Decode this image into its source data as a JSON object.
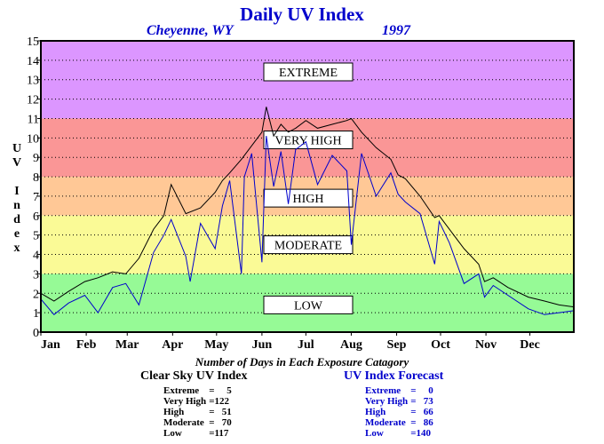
{
  "title": "Daily UV Index",
  "location": "Cheyenne, WY",
  "year": "1997",
  "colors": {
    "extreme": "#dc96ff",
    "very_high": "#fa9696",
    "high": "#ffc896",
    "moderate": "#fafa96",
    "low": "#96fa96",
    "clear_sky_line": "#000000",
    "forecast_line": "#0000cc",
    "title_color": "#0000cc"
  },
  "chart_data": {
    "type": "line",
    "title": "Daily UV Index",
    "ylabel": "UV Index",
    "xlabel": "",
    "ylim": [
      0,
      15
    ],
    "yticks": [
      "0",
      "1",
      "2",
      "3",
      "4",
      "5",
      "6",
      "7",
      "8",
      "9",
      "10",
      "11",
      "12",
      "13",
      "14",
      "15"
    ],
    "month_labels": [
      "Jan",
      "Feb",
      "Mar",
      "Apr",
      "May",
      "Jun",
      "Jul",
      "Aug",
      "Sep",
      "Oct",
      "Nov",
      "Dec"
    ],
    "grid": "dotted horizontal",
    "bands": [
      {
        "label": "EXTREME",
        "from": 11,
        "to": 15,
        "label_at": 13.4
      },
      {
        "label": "VERY HIGH",
        "from": 8,
        "to": 11,
        "label_at": 9.9
      },
      {
        "label": "HIGH",
        "from": 6,
        "to": 8,
        "label_at": 6.9
      },
      {
        "label": "MODERATE",
        "from": 3,
        "to": 6,
        "label_at": 4.5
      },
      {
        "label": "LOW",
        "from": 0,
        "to": 3,
        "label_at": 1.4
      }
    ],
    "series": [
      {
        "name": "Clear Sky UV Index",
        "x_day": [
          1,
          10,
          20,
          31,
          40,
          50,
          59,
          68,
          78,
          85,
          90,
          100,
          110,
          120,
          125,
          130,
          138,
          145,
          152,
          155,
          160,
          165,
          170,
          175,
          182,
          190,
          200,
          210,
          213,
          220,
          230,
          240,
          245,
          250,
          260,
          270,
          273,
          280,
          290,
          300,
          304,
          310,
          320,
          334,
          345,
          355,
          365
        ],
        "values": [
          2.0,
          1.6,
          2.1,
          2.6,
          2.8,
          3.1,
          3.0,
          3.8,
          5.3,
          6.0,
          7.6,
          6.1,
          6.4,
          7.2,
          7.8,
          8.2,
          8.9,
          9.6,
          10.3,
          11.6,
          10.1,
          10.7,
          10.3,
          10.5,
          10.9,
          10.5,
          10.7,
          10.9,
          11.0,
          10.3,
          9.5,
          8.9,
          8.1,
          7.9,
          7.0,
          5.9,
          6.0,
          5.3,
          4.3,
          3.5,
          2.6,
          2.8,
          2.3,
          1.8,
          1.6,
          1.4,
          1.3
        ]
      },
      {
        "name": "UV Index Forecast",
        "x_day": [
          1,
          10,
          20,
          31,
          40,
          50,
          59,
          68,
          78,
          85,
          90,
          100,
          103,
          110,
          120,
          125,
          130,
          138,
          140,
          145,
          152,
          155,
          160,
          165,
          170,
          175,
          182,
          190,
          200,
          210,
          213,
          220,
          230,
          240,
          245,
          250,
          260,
          270,
          273,
          280,
          290,
          300,
          304,
          310,
          320,
          334,
          345,
          355,
          365
        ],
        "values": [
          1.7,
          0.9,
          1.5,
          1.9,
          1.0,
          2.3,
          2.5,
          1.4,
          4.1,
          5.0,
          5.8,
          3.9,
          2.6,
          5.6,
          4.3,
          6.5,
          7.8,
          3.0,
          8.0,
          9.2,
          3.6,
          10.1,
          7.5,
          9.3,
          6.6,
          9.4,
          9.8,
          7.6,
          9.1,
          8.3,
          4.5,
          9.2,
          7.0,
          8.2,
          7.1,
          6.7,
          6.1,
          3.5,
          5.7,
          4.6,
          2.5,
          3.0,
          1.8,
          2.4,
          1.9,
          1.2,
          0.9,
          1.0,
          1.1
        ]
      }
    ]
  },
  "footer": {
    "title": "Number of Days in Each Exposure Catagory",
    "clear_sky": {
      "heading": "Clear Sky UV Index",
      "rows": [
        {
          "label": "Extreme",
          "value": "=     5"
        },
        {
          "label": "Very High",
          "value": "=122"
        },
        {
          "label": "High",
          "value": "=   51"
        },
        {
          "label": "Moderate",
          "value": "=   70"
        },
        {
          "label": "Low",
          "value": "=117"
        }
      ]
    },
    "forecast": {
      "heading": "UV Index Forecast",
      "rows": [
        {
          "label": "Extreme",
          "value": "=     0"
        },
        {
          "label": "Very High",
          "value": "=   73"
        },
        {
          "label": "High",
          "value": "=   66"
        },
        {
          "label": "Moderate",
          "value": "=   86"
        },
        {
          "label": "Low",
          "value": "=140"
        }
      ]
    }
  }
}
